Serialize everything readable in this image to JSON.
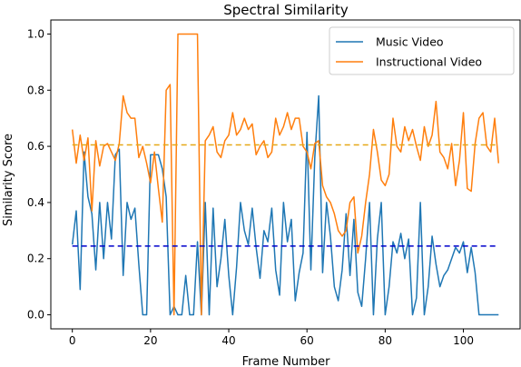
{
  "chart_data": {
    "type": "line",
    "title": "Spectral Similarity",
    "xlabel": "Frame Number",
    "ylabel": "Similarity Score",
    "xlim": [
      -5.5,
      114.5
    ],
    "ylim": [
      -0.05,
      1.05
    ],
    "xticks": [
      0,
      20,
      40,
      60,
      80,
      100
    ],
    "yticks": [
      0.0,
      0.2,
      0.4,
      0.6,
      0.8,
      1.0
    ],
    "xtick_labels": [
      "0",
      "20",
      "40",
      "60",
      "80",
      "100"
    ],
    "ytick_labels": [
      "0.0",
      "0.2",
      "0.4",
      "0.6",
      "0.8",
      "1.0"
    ],
    "legend_position": "top-right",
    "grid": false,
    "series": [
      {
        "name": "Music Video",
        "color": "#1f77b4",
        "x": [
          0,
          1,
          2,
          3,
          4,
          5,
          6,
          7,
          8,
          9,
          10,
          11,
          12,
          13,
          14,
          15,
          16,
          17,
          18,
          19,
          20,
          21,
          22,
          23,
          24,
          25,
          26,
          27,
          28,
          29,
          30,
          31,
          32,
          33,
          34,
          35,
          36,
          37,
          38,
          39,
          40,
          41,
          42,
          43,
          44,
          45,
          46,
          47,
          48,
          49,
          50,
          51,
          52,
          53,
          54,
          55,
          56,
          57,
          58,
          59,
          60,
          61,
          62,
          63,
          64,
          65,
          66,
          67,
          68,
          69,
          70,
          71,
          72,
          73,
          74,
          75,
          76,
          77,
          78,
          79,
          80,
          81,
          82,
          83,
          84,
          85,
          86,
          87,
          88,
          89,
          90,
          91,
          92,
          93,
          94,
          95,
          96,
          97,
          98,
          99,
          100,
          101,
          102,
          103,
          104,
          105,
          106,
          107,
          108,
          109
        ],
        "values": [
          0.25,
          0.37,
          0.09,
          0.58,
          0.42,
          0.36,
          0.16,
          0.4,
          0.2,
          0.4,
          0.27,
          0.57,
          0.59,
          0.14,
          0.4,
          0.34,
          0.38,
          0.18,
          0.0,
          0.0,
          0.57,
          0.57,
          0.57,
          0.52,
          0.42,
          0.0,
          0.03,
          0.0,
          0.0,
          0.14,
          0.0,
          0.0,
          0.26,
          0.0,
          0.4,
          0.0,
          0.38,
          0.1,
          0.2,
          0.34,
          0.14,
          0.0,
          0.17,
          0.4,
          0.3,
          0.25,
          0.38,
          0.24,
          0.13,
          0.3,
          0.26,
          0.38,
          0.16,
          0.07,
          0.4,
          0.26,
          0.34,
          0.05,
          0.15,
          0.22,
          0.65,
          0.16,
          0.56,
          0.78,
          0.15,
          0.4,
          0.28,
          0.1,
          0.05,
          0.16,
          0.36,
          0.14,
          0.34,
          0.08,
          0.03,
          0.2,
          0.4,
          0.0,
          0.27,
          0.4,
          0.0,
          0.1,
          0.26,
          0.22,
          0.29,
          0.2,
          0.27,
          0.0,
          0.06,
          0.4,
          0.0,
          0.1,
          0.28,
          0.18,
          0.1,
          0.14,
          0.16,
          0.2,
          0.24,
          0.22,
          0.26,
          0.15,
          0.24,
          0.15,
          0.0,
          0.0,
          0.0,
          0.0,
          0.0,
          0.0
        ]
      },
      {
        "name": "Instructional Video",
        "color": "#ff7f0e",
        "x": [
          0,
          1,
          2,
          3,
          4,
          5,
          6,
          7,
          8,
          9,
          10,
          11,
          12,
          13,
          14,
          15,
          16,
          17,
          18,
          19,
          20,
          21,
          22,
          23,
          24,
          25,
          26,
          27,
          28,
          29,
          30,
          31,
          32,
          33,
          34,
          35,
          36,
          37,
          38,
          39,
          40,
          41,
          42,
          43,
          44,
          45,
          46,
          47,
          48,
          49,
          50,
          51,
          52,
          53,
          54,
          55,
          56,
          57,
          58,
          59,
          60,
          61,
          62,
          63,
          64,
          65,
          66,
          67,
          68,
          69,
          70,
          71,
          72,
          73,
          74,
          75,
          76,
          77,
          78,
          79,
          80,
          81,
          82,
          83,
          84,
          85,
          86,
          87,
          88,
          89,
          90,
          91,
          92,
          93,
          94,
          95,
          96,
          97,
          98,
          99,
          100,
          101,
          102,
          103,
          104,
          105,
          106,
          107,
          108,
          109
        ],
        "values": [
          0.66,
          0.54,
          0.64,
          0.55,
          0.63,
          0.37,
          0.62,
          0.53,
          0.6,
          0.61,
          0.58,
          0.55,
          0.61,
          0.78,
          0.72,
          0.7,
          0.7,
          0.56,
          0.6,
          0.54,
          0.47,
          0.58,
          0.45,
          0.33,
          0.8,
          0.82,
          0.0,
          1.0,
          1.0,
          1.0,
          1.0,
          1.0,
          1.0,
          0.0,
          0.62,
          0.64,
          0.67,
          0.58,
          0.56,
          0.62,
          0.64,
          0.72,
          0.64,
          0.66,
          0.7,
          0.66,
          0.68,
          0.57,
          0.6,
          0.62,
          0.56,
          0.58,
          0.7,
          0.64,
          0.67,
          0.72,
          0.66,
          0.7,
          0.7,
          0.6,
          0.58,
          0.52,
          0.61,
          0.62,
          0.46,
          0.42,
          0.4,
          0.36,
          0.3,
          0.28,
          0.3,
          0.4,
          0.42,
          0.22,
          0.28,
          0.4,
          0.5,
          0.66,
          0.58,
          0.48,
          0.46,
          0.5,
          0.7,
          0.6,
          0.58,
          0.67,
          0.62,
          0.66,
          0.6,
          0.55,
          0.67,
          0.6,
          0.64,
          0.76,
          0.58,
          0.56,
          0.52,
          0.61,
          0.46,
          0.55,
          0.72,
          0.45,
          0.44,
          0.61,
          0.7,
          0.72,
          0.6,
          0.58,
          0.7,
          0.54
        ]
      }
    ],
    "reference_lines": [
      {
        "y": 0.245,
        "color": "#0000cc",
        "style": "dashed"
      },
      {
        "y": 0.605,
        "color": "#e6a817",
        "style": "dashed"
      }
    ]
  }
}
